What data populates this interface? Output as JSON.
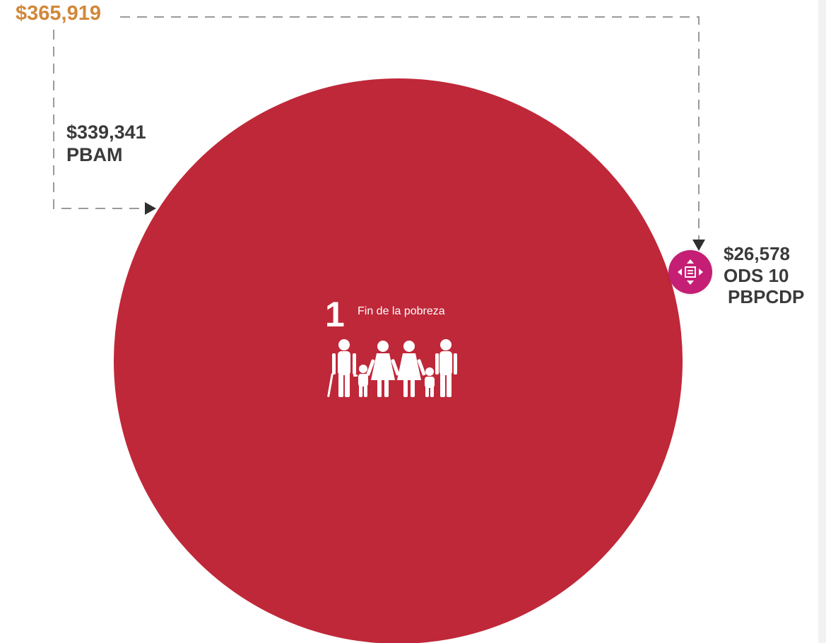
{
  "total": {
    "amount": "$365,919",
    "color": "#d1883a"
  },
  "pbam": {
    "amount": "$339,341",
    "label": "PBAM"
  },
  "ods10": {
    "amount": "$26,578",
    "goal": "ODS 10",
    "program": "PBPCDP",
    "icon": "reduced-inequalities-icon",
    "color": "#c41f74"
  },
  "goal1": {
    "number": "1",
    "title": "Fin de la pobreza",
    "icon": "family-icon",
    "color": "#bf2839"
  }
}
